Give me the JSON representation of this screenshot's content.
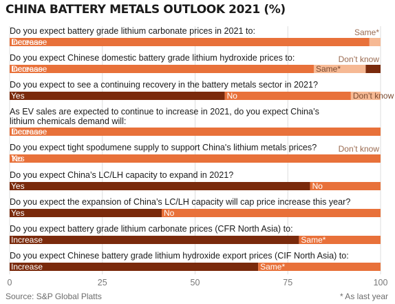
{
  "chart_data": {
    "type": "bar",
    "stacked": true,
    "orientation": "horizontal",
    "title": "CHINA BATTERY METALS OUTLOOK 2021 (%)",
    "source": "Source: S&P Global Platts",
    "footnote": "* As last year",
    "xlim": [
      0,
      100
    ],
    "xticks": [
      0,
      25,
      50,
      75,
      100
    ],
    "colors": {
      "first": "#7a2a0c",
      "second": "#e8713a",
      "third": "#f6b994",
      "tick_text": "#777777",
      "grid": "#dddddd"
    },
    "questions": [
      {
        "question": "Do you expect battery grade lithium carbonate prices in 2021 to:",
        "segments": [
          {
            "label": "Increase",
            "value": 0
          },
          {
            "label": "Decrease",
            "value": 97
          },
          {
            "label": "Same*",
            "value": 3
          }
        ]
      },
      {
        "question": "Do you expect Chinese domestic battery grade lithium hydroxide prices to:",
        "segments": [
          {
            "label": "Increase",
            "value": 0
          },
          {
            "label": "Decrease",
            "value": 82
          },
          {
            "label": "Same*",
            "value": 14
          },
          {
            "label": "Don’t know",
            "value": 4
          }
        ]
      },
      {
        "question": "Do you expect to see a continuing recovery in the battery metals sector in 2021?",
        "segments": [
          {
            "label": "Yes",
            "value": 58
          },
          {
            "label": "No",
            "value": 34
          },
          {
            "label": "Don’t know",
            "value": 8
          }
        ]
      },
      {
        "question": "As EV sales are expected to continue to increase in 2021, do you expect China’s lithium chemicals demand will:",
        "segments": [
          {
            "label": "Increase",
            "value": 0
          },
          {
            "label": "Decrease",
            "value": 100
          }
        ]
      },
      {
        "question": "Do you expect tight spodumene supply to support China's lithium metals prices?",
        "segments": [
          {
            "label": "Yes",
            "value": 0
          },
          {
            "label": "No",
            "value": 100
          },
          {
            "label": "Don’t know",
            "value": 0
          }
        ]
      },
      {
        "question": "Do you expect China’s LC/LH capacity to expand in 2021?",
        "segments": [
          {
            "label": "Yes",
            "value": 81
          },
          {
            "label": "No",
            "value": 19
          }
        ]
      },
      {
        "question": "Do you expect the expansion of China’s LC/LH capacity will cap price increase this year?",
        "segments": [
          {
            "label": "Yes",
            "value": 41
          },
          {
            "label": "No",
            "value": 59
          }
        ]
      },
      {
        "question": "Do you expect battery grade lithium carbonate prices (CFR North Asia) to:",
        "segments": [
          {
            "label": "Increase",
            "value": 78
          },
          {
            "label": "Same*",
            "value": 22
          }
        ]
      },
      {
        "question": "Do you expect Chinese battery grade lithium hydroxide export prices (CIF North Asia) to:",
        "segments": [
          {
            "label": "Increase",
            "value": 67
          },
          {
            "label": "Same*",
            "value": 33
          }
        ]
      }
    ]
  }
}
